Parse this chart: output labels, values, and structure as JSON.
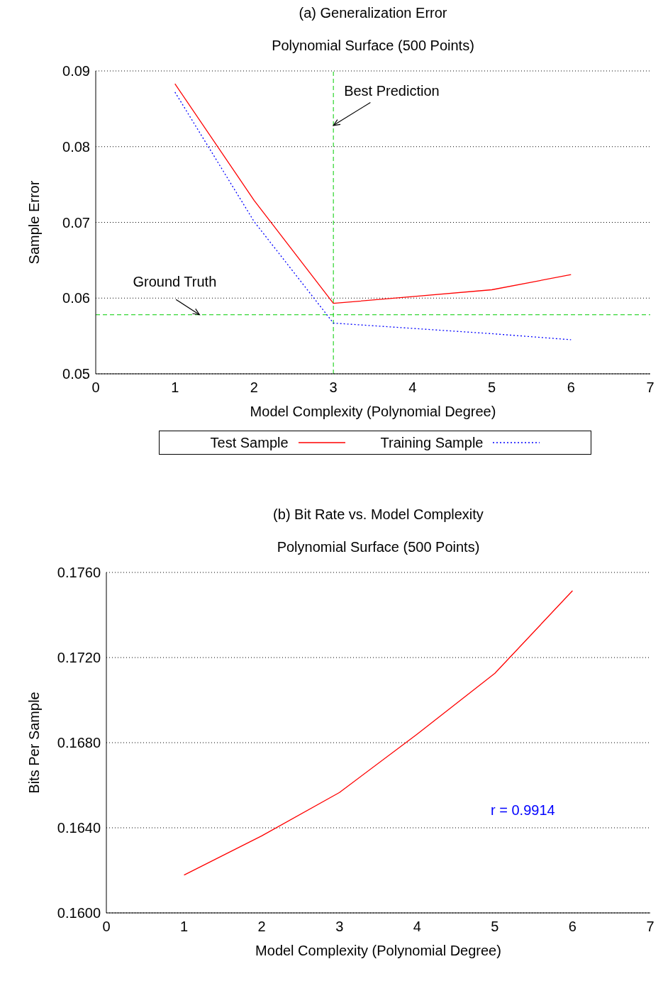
{
  "chart_data": [
    {
      "type": "line",
      "title": "(a) Generalization Error",
      "subtitle": "Polynomial Surface (500 Points)",
      "xlabel": "Model Complexity (Polynomial Degree)",
      "ylabel": "Sample Error",
      "x": [
        1,
        2,
        3,
        4,
        5,
        6
      ],
      "series": [
        {
          "name": "Test Sample",
          "color": "#ff0000",
          "line_style": "solid",
          "values": [
            0.0883,
            0.0729,
            0.0593,
            0.0602,
            0.0611,
            0.0631
          ]
        },
        {
          "name": "Training Sample",
          "color": "#0000ff",
          "line_style": "dotted",
          "values": [
            0.0872,
            0.0701,
            0.0567,
            0.056,
            0.0553,
            0.0545
          ]
        }
      ],
      "xlim": [
        0,
        7
      ],
      "xticks": [
        0,
        1,
        2,
        3,
        4,
        5,
        6,
        7
      ],
      "ylim": [
        0.05,
        0.09
      ],
      "yticks": [
        0.05,
        0.06,
        0.07,
        0.08,
        0.09
      ],
      "grid": "y",
      "legend": "bottom",
      "ref_lines": [
        {
          "axis": "x",
          "value": 3,
          "color": "#00cc00",
          "line_style": "dashed"
        },
        {
          "axis": "y",
          "value": 0.0578,
          "color": "#00cc00",
          "line_style": "dashed"
        }
      ],
      "annotations": [
        {
          "text": "Best Prediction",
          "x": 3,
          "y": 0.0828
        },
        {
          "text": "Ground Truth",
          "x": 1.31,
          "y": 0.0578
        }
      ]
    },
    {
      "type": "line",
      "title": "(b) Bit Rate vs. Model Complexity",
      "subtitle": "Polynomial Surface (500 Points)",
      "xlabel": "Model Complexity (Polynomial Degree)",
      "ylabel": "Bits Per Sample",
      "x": [
        1,
        2,
        3,
        4,
        5,
        6
      ],
      "series": [
        {
          "color": "#ff0000",
          "line_style": "solid",
          "values": [
            0.16178,
            0.16362,
            0.16566,
            0.1684,
            0.17126,
            0.17514
          ]
        }
      ],
      "xlim": [
        0,
        7
      ],
      "xticks": [
        0,
        1,
        2,
        3,
        4,
        5,
        6,
        7
      ],
      "ylim": [
        0.16,
        0.176
      ],
      "yticks": [
        {
          "value": 0.16,
          "label": "0.1600"
        },
        {
          "value": 0.164,
          "label": "0.1640"
        },
        {
          "value": 0.168,
          "label": "0.1680"
        },
        {
          "value": 0.172,
          "label": "0.1720"
        },
        {
          "value": 0.176,
          "label": "0.1760"
        }
      ],
      "grid": "y",
      "annotations": [
        "r = 0.9914"
      ]
    }
  ]
}
